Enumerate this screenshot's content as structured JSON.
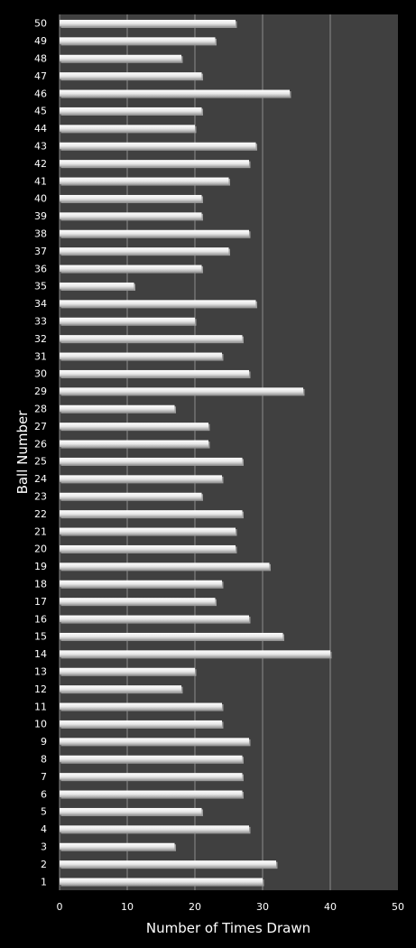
{
  "chart_data": {
    "type": "bar",
    "orientation": "horizontal",
    "title": "",
    "xlabel": "Number of Times Drawn",
    "ylabel": "Ball Number",
    "xlim": [
      0,
      50
    ],
    "x_ticks": [
      "0",
      "10",
      "20",
      "30",
      "40",
      "50"
    ],
    "grid": true,
    "legend": "none",
    "categories": [
      "1",
      "2",
      "3",
      "4",
      "5",
      "6",
      "7",
      "8",
      "9",
      "10",
      "11",
      "12",
      "13",
      "14",
      "15",
      "16",
      "17",
      "18",
      "19",
      "20",
      "21",
      "22",
      "23",
      "24",
      "25",
      "26",
      "27",
      "28",
      "29",
      "30",
      "31",
      "32",
      "33",
      "34",
      "35",
      "36",
      "37",
      "38",
      "39",
      "40",
      "41",
      "42",
      "43",
      "44",
      "45",
      "46",
      "47",
      "48",
      "49",
      "50"
    ],
    "values": [
      30,
      32,
      17,
      28,
      21,
      27,
      27,
      27,
      28,
      24,
      24,
      18,
      20,
      40,
      33,
      28,
      23,
      24,
      31,
      26,
      26,
      27,
      21,
      24,
      27,
      22,
      22,
      17,
      36,
      28,
      24,
      27,
      20,
      29,
      11,
      21,
      25,
      28,
      21,
      21,
      25,
      28,
      29,
      20,
      21,
      34,
      21,
      18,
      23,
      26
    ],
    "colors": {
      "page_background": "#000000",
      "plot_background": "#404040",
      "bar_fill": "#f2f2f2",
      "bar_shadow": "#9a9a9a",
      "gridline": "#8c8c8c",
      "text": "#ffffff"
    }
  }
}
